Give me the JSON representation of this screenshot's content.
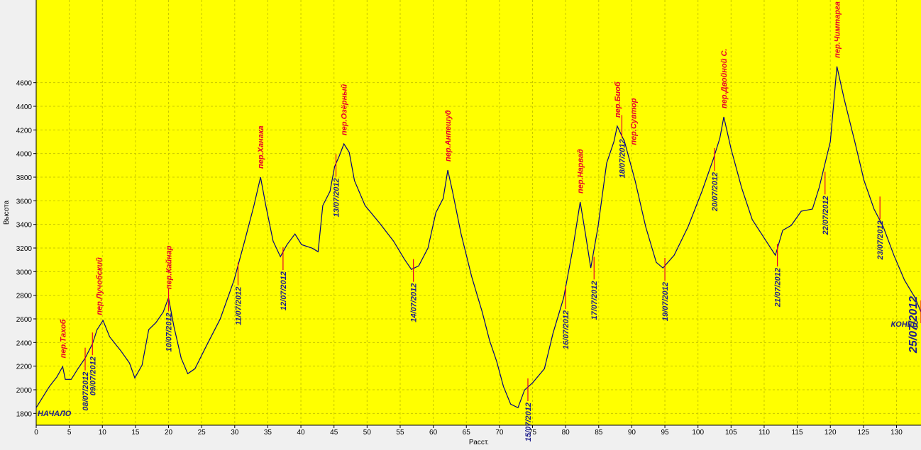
{
  "chart_data": {
    "type": "line",
    "y_label": "Высота",
    "x_label": "Расст.",
    "start_label": "НАЧАЛО",
    "end_label": "КОНЕЦ",
    "xlim": [
      0,
      133.7
    ],
    "ylim": [
      1700,
      5300
    ],
    "xticks": [
      0,
      5,
      10,
      15,
      20,
      25,
      30,
      35,
      40,
      45,
      50,
      55,
      60,
      65,
      70,
      75,
      80,
      85,
      90,
      95,
      100,
      105,
      110,
      115,
      120,
      125,
      130
    ],
    "yticks": [
      1800,
      2000,
      2200,
      2400,
      2600,
      2800,
      3000,
      3200,
      3400,
      3600,
      3800,
      4000,
      4200,
      4400,
      4600
    ],
    "grid": true,
    "x": [
      0,
      1,
      2,
      3.1,
      4,
      4.4,
      5.3,
      6.3,
      7.4,
      8.5,
      9.2,
      10.1,
      11.1,
      12.8,
      14.1,
      14.9,
      16,
      17,
      18.1,
      19.2,
      20,
      20.8,
      21.9,
      22.9,
      24,
      25.6,
      27.8,
      29.9,
      31.5,
      32.9,
      33.9,
      34.7,
      35.8,
      36.9,
      37.9,
      39.1,
      40.1,
      41.7,
      42.6,
      43.3,
      44.4,
      45.1,
      45.8,
      46.5,
      47.3,
      48.1,
      49.7,
      51.9,
      54,
      55.6,
      56.7,
      57.8,
      59.2,
      60.4,
      61.5,
      62.2,
      62.9,
      64.2,
      65.8,
      67.4,
      68.5,
      69.6,
      70.6,
      71.7,
      72.8,
      73.8,
      75,
      76.8,
      78.1,
      79.7,
      81.1,
      82.2,
      83,
      83.8,
      84.9,
      86.2,
      87.3,
      87.8,
      88.9,
      90.5,
      92.1,
      93.7,
      94.7,
      96.4,
      98.5,
      100.6,
      102.3,
      103.3,
      103.9,
      105,
      106.6,
      108.2,
      110.3,
      111.7,
      112.8,
      114.1,
      115.6,
      117.3,
      118.3,
      120,
      121,
      122.1,
      123.7,
      125.1,
      126.6,
      128,
      129.6,
      131.2,
      132.8,
      133.7
    ],
    "series": [
      {
        "color": "#000080",
        "values": [
          1848,
          1938,
          2028,
          2106,
          2196,
          2088,
          2088,
          2178,
          2268,
          2389,
          2509,
          2587,
          2449,
          2329,
          2226,
          2100,
          2208,
          2509,
          2569,
          2659,
          2779,
          2539,
          2268,
          2136,
          2178,
          2359,
          2599,
          2929,
          3259,
          3560,
          3800,
          3560,
          3259,
          3127,
          3229,
          3319,
          3229,
          3199,
          3169,
          3560,
          3680,
          3890,
          3980,
          4082,
          4010,
          3770,
          3560,
          3410,
          3259,
          3109,
          3019,
          3049,
          3199,
          3500,
          3620,
          3860,
          3680,
          3320,
          2959,
          2659,
          2419,
          2238,
          2028,
          1878,
          1848,
          1998,
          2058,
          2178,
          2479,
          2779,
          3199,
          3590,
          3320,
          3031,
          3380,
          3920,
          4100,
          4232,
          4100,
          3770,
          3380,
          3079,
          3031,
          3139,
          3380,
          3680,
          3950,
          4130,
          4310,
          4040,
          3710,
          3440,
          3259,
          3139,
          3350,
          3392,
          3512,
          3530,
          3710,
          4100,
          4737,
          4460,
          4100,
          3770,
          3530,
          3380,
          3139,
          2929,
          2779,
          2659
        ]
      }
    ],
    "passes": [
      {
        "x": 4,
        "y": 2196,
        "label": "пер.Тахоб"
      },
      {
        "x": 9.5,
        "y": 2560,
        "label": "пер.Лучобский"
      },
      {
        "x": 20,
        "y": 2779,
        "label": "пер.Кайнар"
      },
      {
        "x": 33.9,
        "y": 3800,
        "label": "пер.Ханака"
      },
      {
        "x": 46.5,
        "y": 4082,
        "label": "пер.Озёрный"
      },
      {
        "x": 62.2,
        "y": 3860,
        "label": "пер.Анпешуд"
      },
      {
        "x": 82.2,
        "y": 3590,
        "label": "пер.Нарвад"
      },
      {
        "x": 87.8,
        "y": 4232,
        "label": "пер.Биоб"
      },
      {
        "x": 90.2,
        "y": 4000,
        "label": "пер.Сувтор"
      },
      {
        "x": 103.9,
        "y": 4310,
        "label": "пер.Двойной С."
      },
      {
        "x": 121,
        "y": 4737,
        "label": "пер.Чимтарга"
      }
    ],
    "dates": [
      {
        "x": 7.4,
        "y": 2260,
        "label": "08/07/2012"
      },
      {
        "x": 8.5,
        "y": 2389,
        "label": "09/07/2012"
      },
      {
        "x": 20,
        "y": 2760,
        "label": "10/07/2012"
      },
      {
        "x": 30.5,
        "y": 2980,
        "label": "11/07/2012"
      },
      {
        "x": 37.3,
        "y": 3110,
        "label": "12/07/2012"
      },
      {
        "x": 45.3,
        "y": 3900,
        "label": "13/07/2012"
      },
      {
        "x": 57,
        "y": 3010,
        "label": "14/07/2012"
      },
      {
        "x": 74.3,
        "y": 2000,
        "label": "15/07/2012"
      },
      {
        "x": 80,
        "y": 2780,
        "label": "16/07/2012"
      },
      {
        "x": 84.3,
        "y": 3030,
        "label": "17/07/2012"
      },
      {
        "x": 88.5,
        "y": 4230,
        "label": "18/07/2012"
      },
      {
        "x": 95,
        "y": 3020,
        "label": "19/07/2012"
      },
      {
        "x": 102.5,
        "y": 3950,
        "label": "20/07/2012"
      },
      {
        "x": 112,
        "y": 3140,
        "label": "21/07/2012"
      },
      {
        "x": 119.2,
        "y": 3750,
        "label": "22/07/2012"
      },
      {
        "x": 127.5,
        "y": 3540,
        "label": "23/07/2012"
      },
      {
        "x": 133.7,
        "y": 2660,
        "label": "25/07/2012"
      }
    ]
  }
}
